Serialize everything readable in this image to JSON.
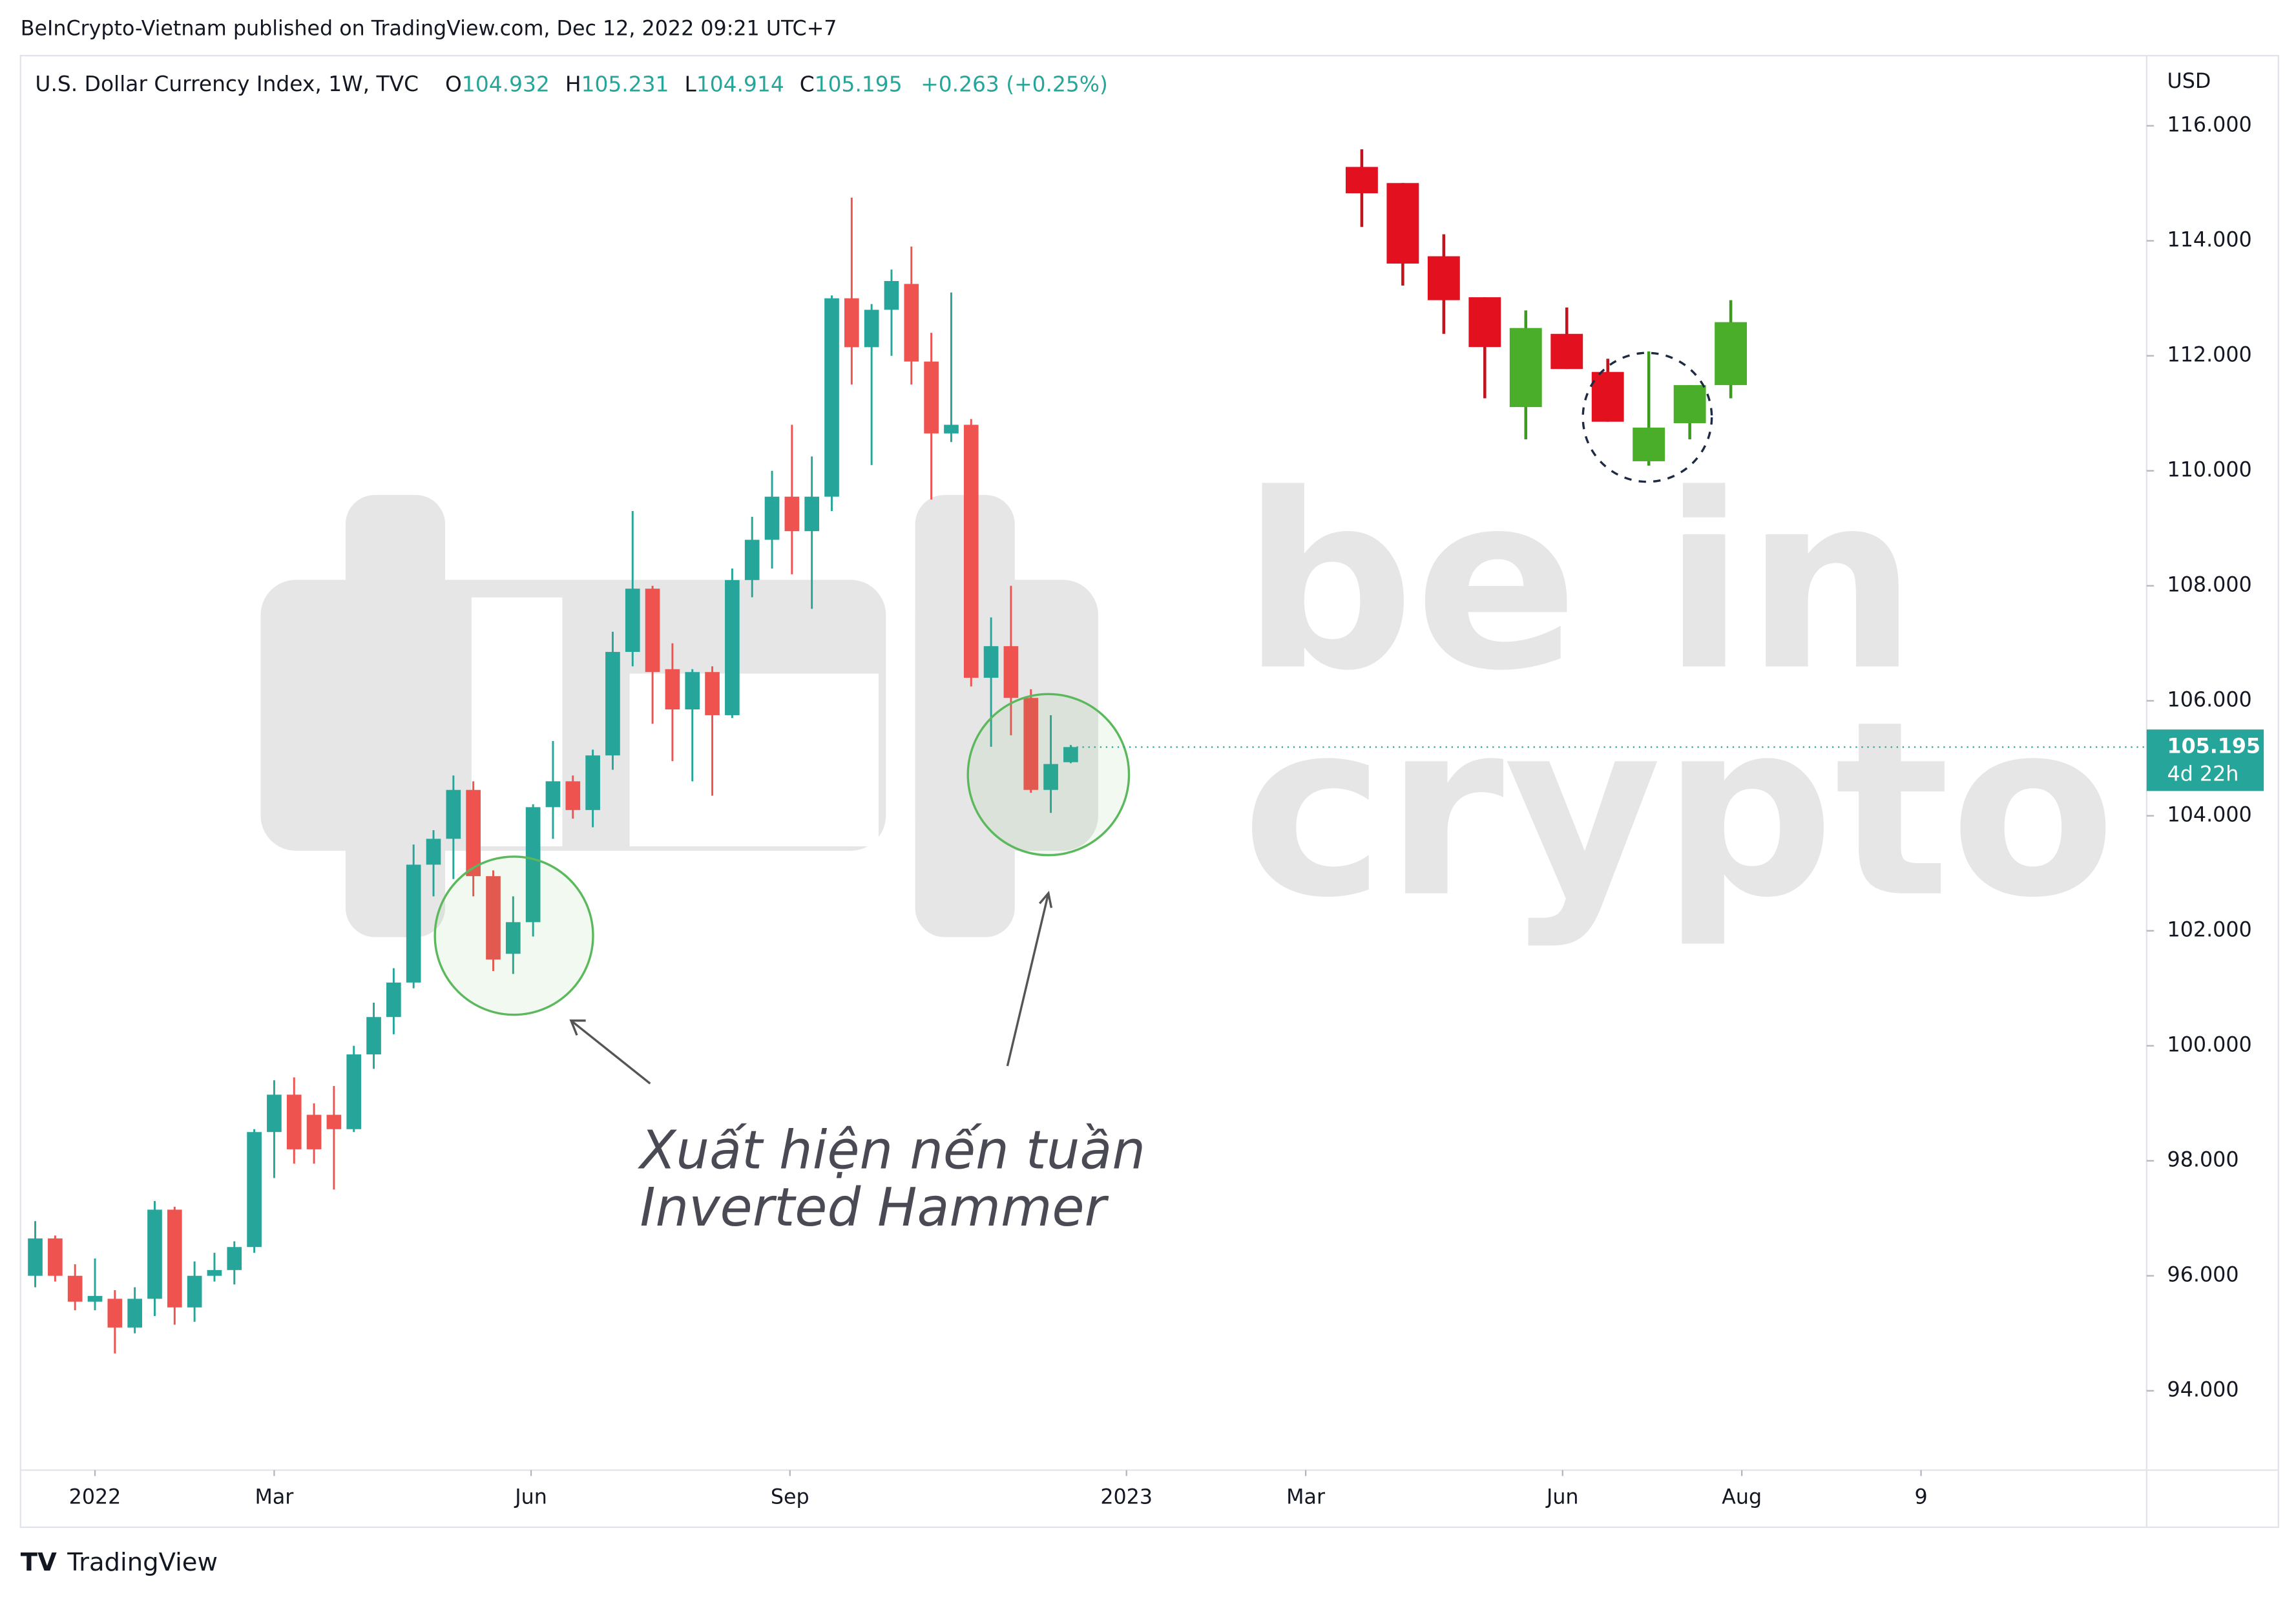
{
  "header": {
    "published": "BeInCrypto-Vietnam published on TradingView.com, Dec 12, 2022 09:21 UTC+7",
    "footer": "TradingView"
  },
  "chart_data": {
    "type": "candlestick",
    "symbol": "U.S. Dollar Currency Index, 1W, TVC",
    "ohlc_legend": {
      "o_label": "O",
      "o": 104.932,
      "h_label": "H",
      "h": 105.231,
      "l_label": "L",
      "l": 104.914,
      "c_label": "C",
      "c": 105.195,
      "change": "+0.263 (+0.25%)"
    },
    "currency": "USD",
    "last_price": 105.195,
    "countdown": "4d 22h",
    "annotation": [
      "Xuất hiện nến tuần",
      "Inverted Hammer"
    ],
    "watermark": [
      "be in",
      "crypto"
    ],
    "up_color": "#26a69a",
    "down_color": "#ef5350",
    "x": [
      0,
      1,
      2,
      3,
      4,
      5,
      6,
      7,
      8,
      9,
      10,
      11,
      12,
      13,
      14,
      15,
      16,
      17,
      18,
      19,
      20,
      21,
      22,
      23,
      24,
      25,
      26,
      27,
      28,
      29,
      30,
      31,
      32,
      33,
      34,
      35,
      36,
      37,
      38,
      39,
      40,
      41,
      42,
      43,
      44,
      45,
      46,
      47,
      48,
      49,
      50,
      51,
      52
    ],
    "open": [
      96.0,
      96.65,
      96.0,
      95.55,
      95.6,
      95.1,
      95.6,
      97.15,
      95.45,
      96.0,
      96.1,
      96.5,
      98.5,
      99.15,
      98.8,
      98.8,
      98.55,
      99.85,
      100.5,
      101.1,
      103.15,
      103.6,
      104.45,
      102.95,
      101.6,
      102.15,
      104.15,
      104.6,
      104.1,
      105.05,
      106.85,
      107.95,
      106.55,
      105.85,
      106.5,
      105.75,
      108.1,
      108.8,
      109.55,
      108.95,
      109.55,
      113.0,
      112.15,
      112.8,
      113.25,
      111.9,
      110.65,
      110.8,
      106.4,
      106.95,
      106.05,
      104.45,
      104.932
    ],
    "high": [
      96.95,
      96.7,
      96.2,
      96.3,
      95.75,
      95.8,
      97.3,
      97.2,
      96.25,
      96.4,
      96.6,
      98.55,
      99.4,
      99.45,
      99.0,
      99.3,
      100.0,
      100.75,
      101.35,
      103.5,
      103.75,
      104.7,
      104.6,
      103.05,
      102.6,
      104.2,
      105.3,
      104.7,
      105.15,
      107.2,
      109.3,
      108.0,
      107.0,
      106.55,
      106.6,
      108.3,
      109.2,
      110.0,
      110.8,
      110.25,
      113.05,
      114.75,
      112.9,
      113.5,
      113.9,
      112.4,
      113.1,
      110.9,
      107.45,
      108.0,
      106.2,
      105.75,
      105.231
    ],
    "low": [
      95.8,
      95.9,
      95.4,
      95.4,
      94.65,
      95.0,
      95.3,
      95.15,
      95.2,
      95.9,
      95.85,
      96.4,
      97.7,
      97.95,
      97.95,
      97.5,
      98.5,
      99.6,
      100.2,
      101.0,
      102.6,
      102.9,
      102.6,
      101.3,
      101.25,
      101.9,
      103.6,
      103.95,
      103.8,
      104.8,
      106.6,
      105.6,
      104.95,
      104.6,
      104.35,
      105.7,
      107.8,
      108.3,
      108.2,
      107.6,
      109.3,
      111.5,
      110.1,
      112.0,
      111.5,
      109.5,
      110.5,
      106.25,
      105.2,
      105.4,
      104.4,
      104.05,
      104.914
    ],
    "close": [
      96.65,
      96.0,
      95.55,
      95.65,
      95.1,
      95.6,
      97.15,
      95.45,
      96.0,
      96.1,
      96.5,
      98.5,
      99.15,
      98.2,
      98.2,
      98.55,
      99.85,
      100.5,
      101.1,
      103.15,
      103.6,
      104.45,
      102.95,
      101.5,
      102.15,
      104.15,
      104.6,
      104.1,
      105.05,
      106.85,
      107.95,
      106.5,
      105.85,
      106.5,
      105.75,
      108.1,
      108.8,
      109.55,
      108.95,
      109.55,
      113.0,
      112.15,
      112.8,
      113.3,
      111.9,
      110.65,
      110.8,
      106.4,
      106.95,
      106.05,
      104.45,
      104.9,
      105.195
    ],
    "xlim": [
      -0.74,
      106.03
    ],
    "xticks": [
      {
        "value": 3.0,
        "label": "2022"
      },
      {
        "value": 12.0,
        "label": "Mar"
      },
      {
        "value": 24.9,
        "label": "Jun"
      },
      {
        "value": 37.9,
        "label": "Sep"
      },
      {
        "value": 54.8,
        "label": "2023"
      },
      {
        "value": 63.8,
        "label": "Mar"
      },
      {
        "value": 76.7,
        "label": "Jun"
      },
      {
        "value": 85.7,
        "label": "Aug"
      },
      {
        "value": 94.7,
        "label": "9"
      }
    ],
    "ylim": [
      92.62,
      117.22
    ],
    "yticks": [
      {
        "value": 116,
        "label": "116.000"
      },
      {
        "value": 114,
        "label": "114.000"
      },
      {
        "value": 112,
        "label": "112.000"
      },
      {
        "value": 110,
        "label": "110.000"
      },
      {
        "value": 108,
        "label": "108.000"
      },
      {
        "value": 106,
        "label": "106.000"
      },
      {
        "value": 104,
        "label": "104.000"
      },
      {
        "value": 102,
        "label": "102.000"
      },
      {
        "value": 100,
        "label": "100.000"
      },
      {
        "value": 98,
        "label": "98.000"
      },
      {
        "value": 96,
        "label": "96.000"
      },
      {
        "value": 94,
        "label": "94.000"
      }
    ]
  }
}
